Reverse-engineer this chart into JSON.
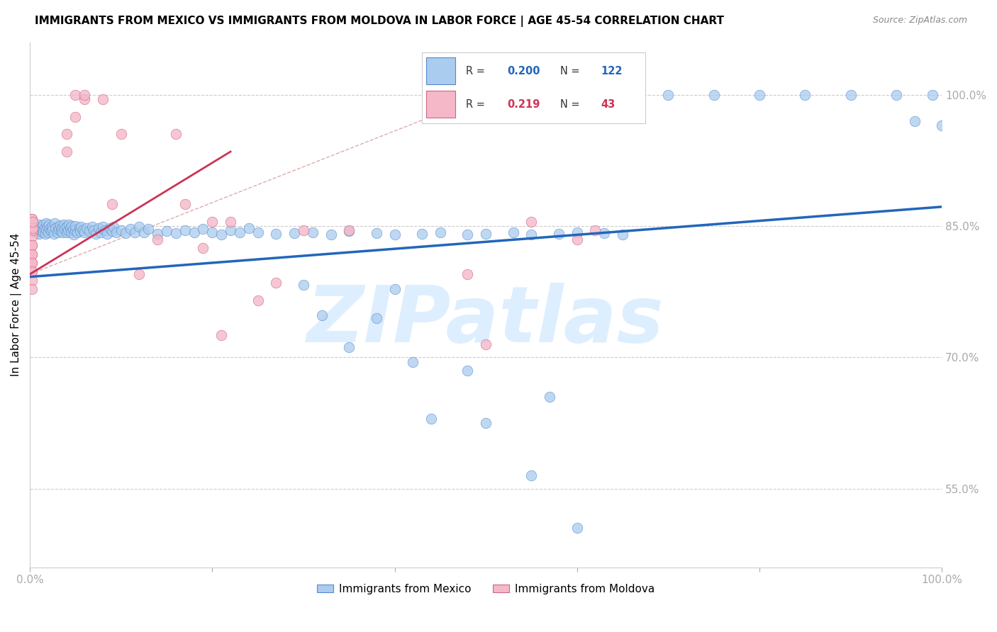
{
  "title": "IMMIGRANTS FROM MEXICO VS IMMIGRANTS FROM MOLDOVA IN LABOR FORCE | AGE 45-54 CORRELATION CHART",
  "source": "Source: ZipAtlas.com",
  "ylabel": "In Labor Force | Age 45-54",
  "legend_mexico": "Immigrants from Mexico",
  "legend_moldova": "Immigrants from Moldova",
  "R_mexico": 0.2,
  "N_mexico": 122,
  "R_moldova": 0.219,
  "N_moldova": 43,
  "color_mexico_fill": "#aaccee",
  "color_mexico_edge": "#5588cc",
  "color_moldova_fill": "#f5b8c8",
  "color_moldova_edge": "#cc6688",
  "color_trendline_mexico": "#2266bb",
  "color_trendline_moldova": "#cc3355",
  "color_refline": "#ddaaaa",
  "xlim": [
    0.0,
    1.0
  ],
  "ylim": [
    0.46,
    1.06
  ],
  "yticks": [
    0.55,
    0.7,
    0.85,
    1.0
  ],
  "ytick_labels": [
    "55.0%",
    "70.0%",
    "85.0%",
    "100.0%"
  ],
  "xtick_left_label": "0.0%",
  "xtick_right_label": "100.0%",
  "tick_color": "#2266bb",
  "watermark_text": "ZIPatlas",
  "watermark_color": "#ddeeff",
  "trendline_mexico_x0": 0.0,
  "trendline_mexico_y0": 0.792,
  "trendline_mexico_x1": 1.0,
  "trendline_mexico_y1": 0.872,
  "trendline_moldova_x0": 0.0,
  "trendline_moldova_y0": 0.795,
  "trendline_moldova_x1": 0.22,
  "trendline_moldova_y1": 0.935,
  "refline_x0": 0.0,
  "refline_y0": 0.795,
  "refline_x1": 0.55,
  "refline_y1": 1.02,
  "mexico_x": [
    0.005,
    0.007,
    0.008,
    0.01,
    0.01,
    0.01,
    0.012,
    0.013,
    0.014,
    0.015,
    0.015,
    0.016,
    0.017,
    0.018,
    0.018,
    0.019,
    0.02,
    0.021,
    0.022,
    0.023,
    0.024,
    0.025,
    0.026,
    0.027,
    0.028,
    0.03,
    0.031,
    0.032,
    0.033,
    0.034,
    0.035,
    0.036,
    0.037,
    0.038,
    0.04,
    0.04,
    0.042,
    0.043,
    0.044,
    0.045,
    0.046,
    0.047,
    0.048,
    0.05,
    0.05,
    0.052,
    0.054,
    0.055,
    0.056,
    0.058,
    0.06,
    0.062,
    0.065,
    0.068,
    0.07,
    0.072,
    0.075,
    0.078,
    0.08,
    0.082,
    0.085,
    0.088,
    0.09,
    0.092,
    0.095,
    0.1,
    0.105,
    0.11,
    0.115,
    0.12,
    0.125,
    0.13,
    0.14,
    0.15,
    0.16,
    0.17,
    0.18,
    0.19,
    0.2,
    0.21,
    0.22,
    0.23,
    0.24,
    0.25,
    0.27,
    0.29,
    0.31,
    0.33,
    0.35,
    0.38,
    0.4,
    0.43,
    0.45,
    0.48,
    0.5,
    0.53,
    0.55,
    0.58,
    0.6,
    0.63,
    0.65,
    0.7,
    0.75,
    0.8,
    0.85,
    0.9,
    0.95,
    0.97,
    0.99,
    1.0,
    0.48,
    0.5,
    0.55,
    0.57,
    0.6,
    0.42,
    0.44,
    0.3,
    0.32,
    0.35,
    0.38,
    0.4
  ],
  "mexico_y": [
    0.845,
    0.848,
    0.843,
    0.852,
    0.847,
    0.841,
    0.849,
    0.844,
    0.846,
    0.852,
    0.843,
    0.848,
    0.841,
    0.853,
    0.846,
    0.849,
    0.843,
    0.852,
    0.847,
    0.844,
    0.849,
    0.846,
    0.841,
    0.853,
    0.848,
    0.843,
    0.849,
    0.846,
    0.851,
    0.844,
    0.848,
    0.843,
    0.852,
    0.847,
    0.843,
    0.849,
    0.845,
    0.852,
    0.848,
    0.843,
    0.85,
    0.846,
    0.84,
    0.845,
    0.85,
    0.843,
    0.848,
    0.844,
    0.849,
    0.845,
    0.843,
    0.848,
    0.844,
    0.849,
    0.845,
    0.841,
    0.848,
    0.843,
    0.849,
    0.845,
    0.841,
    0.848,
    0.844,
    0.849,
    0.843,
    0.845,
    0.842,
    0.847,
    0.843,
    0.849,
    0.843,
    0.847,
    0.841,
    0.844,
    0.842,
    0.845,
    0.843,
    0.847,
    0.843,
    0.84,
    0.845,
    0.843,
    0.848,
    0.843,
    0.841,
    0.842,
    0.843,
    0.84,
    0.844,
    0.842,
    0.84,
    0.841,
    0.843,
    0.84,
    0.841,
    0.843,
    0.84,
    0.841,
    0.843,
    0.842,
    0.84,
    1.0,
    1.0,
    1.0,
    1.0,
    1.0,
    1.0,
    0.97,
    1.0,
    0.965,
    0.685,
    0.625,
    0.565,
    0.655,
    0.505,
    0.695,
    0.63,
    0.783,
    0.748,
    0.712,
    0.745,
    0.778
  ],
  "moldova_x": [
    0.002,
    0.002,
    0.002,
    0.002,
    0.002,
    0.002,
    0.002,
    0.002,
    0.002,
    0.002,
    0.002,
    0.002,
    0.002,
    0.002,
    0.003,
    0.003,
    0.003,
    0.04,
    0.04,
    0.05,
    0.05,
    0.06,
    0.06,
    0.08,
    0.09,
    0.1,
    0.12,
    0.14,
    0.16,
    0.17,
    0.19,
    0.2,
    0.21,
    0.22,
    0.25,
    0.27,
    0.3,
    0.35,
    0.48,
    0.5,
    0.55,
    0.6,
    0.62
  ],
  "moldova_y": [
    0.848,
    0.838,
    0.858,
    0.828,
    0.818,
    0.808,
    0.798,
    0.788,
    0.778,
    0.858,
    0.828,
    0.818,
    0.808,
    0.798,
    0.845,
    0.848,
    0.855,
    0.935,
    0.955,
    0.975,
    1.0,
    0.995,
    1.0,
    0.995,
    0.875,
    0.955,
    0.795,
    0.835,
    0.955,
    0.875,
    0.825,
    0.855,
    0.725,
    0.855,
    0.765,
    0.785,
    0.845,
    0.845,
    0.795,
    0.715,
    0.855,
    0.835,
    0.845
  ]
}
